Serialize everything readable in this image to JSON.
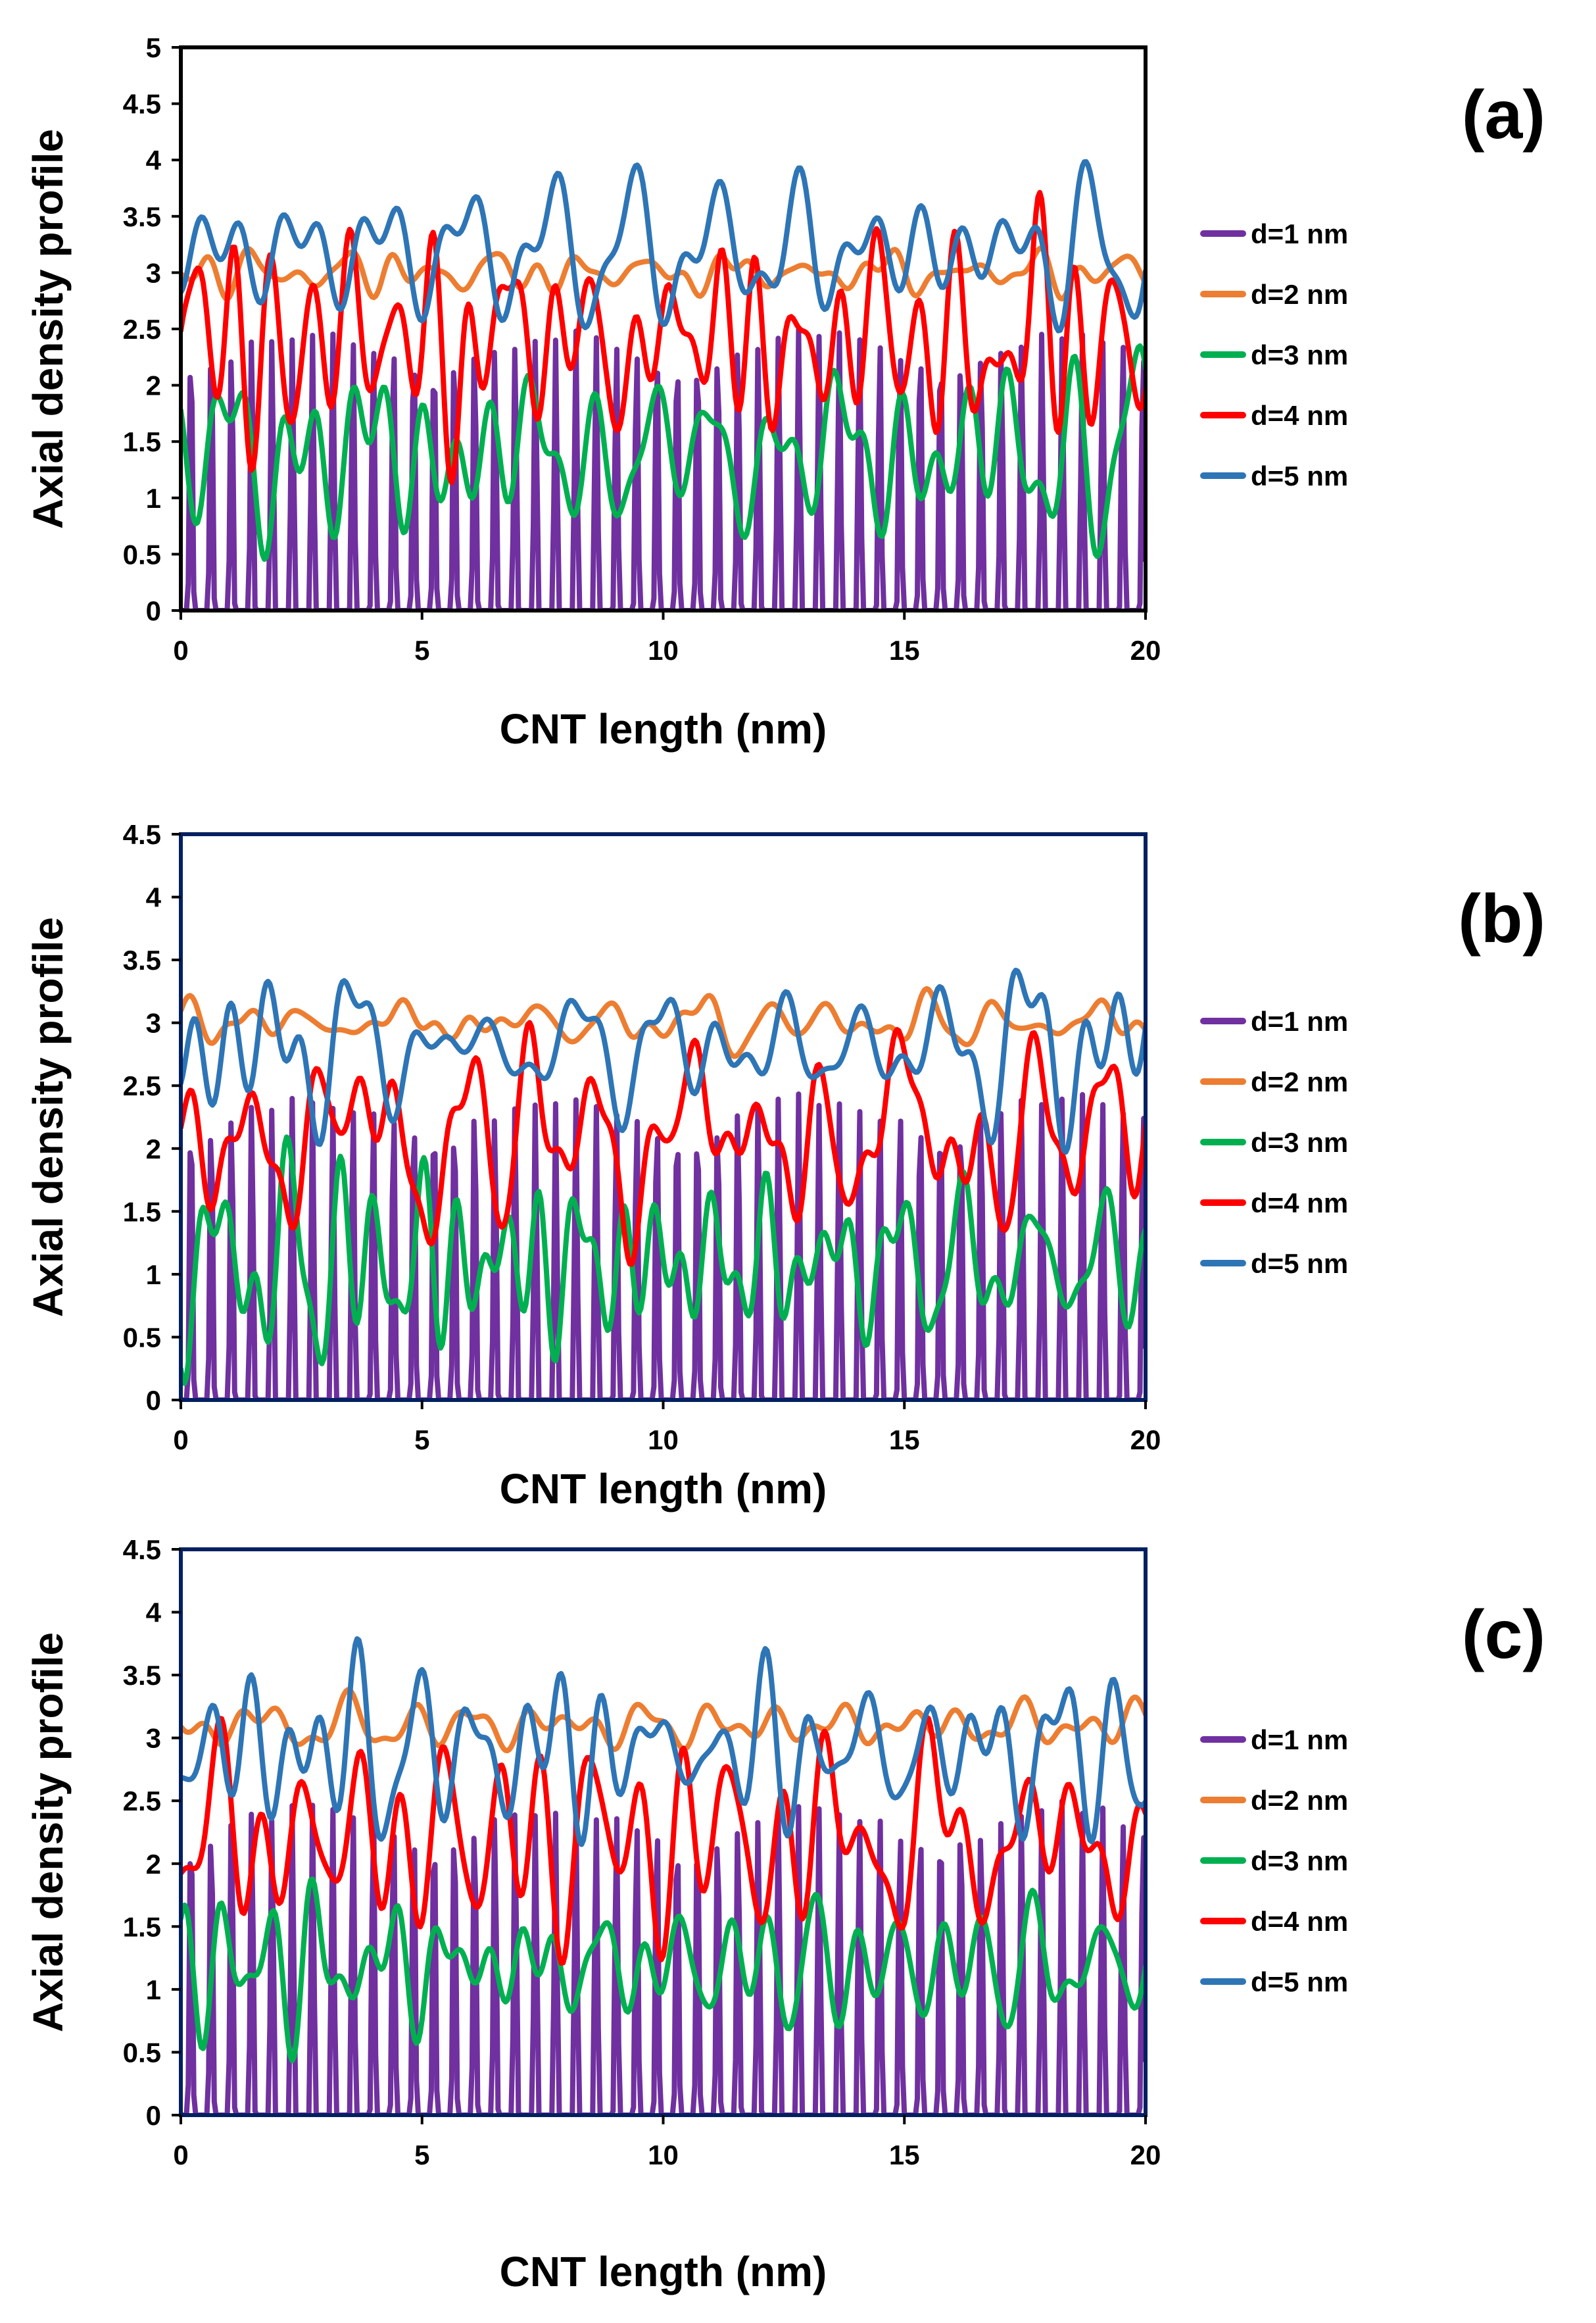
{
  "chart_data": [
    {
      "type": "line",
      "panel_label": "(a)",
      "xlabel": "CNT length (nm)",
      "ylabel": "Axial density profile",
      "xlim": [
        0,
        20
      ],
      "ylim": [
        0,
        5
      ],
      "xticks": [
        "0",
        "5",
        "10",
        "15",
        "20"
      ],
      "yticks": [
        "0",
        "0.5",
        "1",
        "1.5",
        "2",
        "2.5",
        "3",
        "3.5",
        "4",
        "4.5",
        "5"
      ],
      "legend_position": "right",
      "frame_color": "#000000",
      "series": [
        {
          "name": "d=1 nm",
          "color": "#7030A0",
          "gen": {
            "kind": "spike",
            "base": 0,
            "amp": 2.5,
            "period": 0.42,
            "seed": 11
          }
        },
        {
          "name": "d=2 nm",
          "color": "#ED7D31",
          "gen": {
            "kind": "noise",
            "base": 3.0,
            "amp": 0.18,
            "seed": 23
          }
        },
        {
          "name": "d=3 nm",
          "color": "#00B050",
          "gen": {
            "kind": "noise",
            "base": 1.4,
            "amp": 0.75,
            "seed": 37
          }
        },
        {
          "name": "d=4 nm",
          "color": "#FF0000",
          "gen": {
            "kind": "noise",
            "base": 2.4,
            "amp": 0.75,
            "seed": 41
          }
        },
        {
          "name": "d=5 nm",
          "color": "#2E75B6",
          "gen": {
            "kind": "noise",
            "base": 3.2,
            "amp": 0.6,
            "seed": 53
          }
        }
      ]
    },
    {
      "type": "line",
      "panel_label": "(b)",
      "xlabel": "CNT length (nm)",
      "ylabel": "Axial density profile",
      "xlim": [
        0,
        20
      ],
      "ylim": [
        0,
        4.5
      ],
      "xticks": [
        "0",
        "5",
        "10",
        "15",
        "20"
      ],
      "yticks": [
        "0",
        "0.5",
        "1",
        "1.5",
        "2",
        "2.5",
        "3",
        "3.5",
        "4",
        "4.5"
      ],
      "legend_position": "right",
      "frame_color": "#002060",
      "series": [
        {
          "name": "d=1 nm",
          "color": "#7030A0",
          "gen": {
            "kind": "spike",
            "base": 0,
            "amp": 2.45,
            "period": 0.42,
            "seed": 61
          }
        },
        {
          "name": "d=2 nm",
          "color": "#ED7D31",
          "gen": {
            "kind": "noise",
            "base": 3.0,
            "amp": 0.18,
            "seed": 67
          }
        },
        {
          "name": "d=3 nm",
          "color": "#00B050",
          "gen": {
            "kind": "noise",
            "base": 1.1,
            "amp": 0.7,
            "seed": 71
          }
        },
        {
          "name": "d=4 nm",
          "color": "#FF0000",
          "gen": {
            "kind": "noise",
            "base": 2.1,
            "amp": 0.7,
            "seed": 79
          }
        },
        {
          "name": "d=5 nm",
          "color": "#2E75B6",
          "gen": {
            "kind": "noise",
            "base": 2.8,
            "amp": 0.55,
            "seed": 83
          }
        }
      ]
    },
    {
      "type": "line",
      "panel_label": "(c)",
      "xlabel": "CNT length (nm)",
      "ylabel": "Axial density profile",
      "xlim": [
        0,
        20
      ],
      "ylim": [
        0,
        4.5
      ],
      "xticks": [
        "0",
        "5",
        "10",
        "15",
        "20"
      ],
      "yticks": [
        "0",
        "0.5",
        "1",
        "1.5",
        "2",
        "2.5",
        "3",
        "3.5",
        "4",
        "4.5"
      ],
      "legend_position": "right",
      "frame_color": "#002060",
      "series": [
        {
          "name": "d=1 nm",
          "color": "#7030A0",
          "gen": {
            "kind": "spike",
            "base": 0,
            "amp": 2.5,
            "period": 0.42,
            "seed": 89
          }
        },
        {
          "name": "d=2 nm",
          "color": "#ED7D31",
          "gen": {
            "kind": "noise",
            "base": 3.1,
            "amp": 0.2,
            "seed": 97
          }
        },
        {
          "name": "d=3 nm",
          "color": "#00B050",
          "gen": {
            "kind": "noise",
            "base": 1.2,
            "amp": 0.75,
            "seed": 101
          }
        },
        {
          "name": "d=4 nm",
          "color": "#FF0000",
          "gen": {
            "kind": "noise",
            "base": 2.2,
            "amp": 0.75,
            "seed": 103
          }
        },
        {
          "name": "d=5 nm",
          "color": "#2E75B6",
          "gen": {
            "kind": "noise",
            "base": 2.9,
            "amp": 0.6,
            "seed": 107
          }
        }
      ]
    }
  ]
}
